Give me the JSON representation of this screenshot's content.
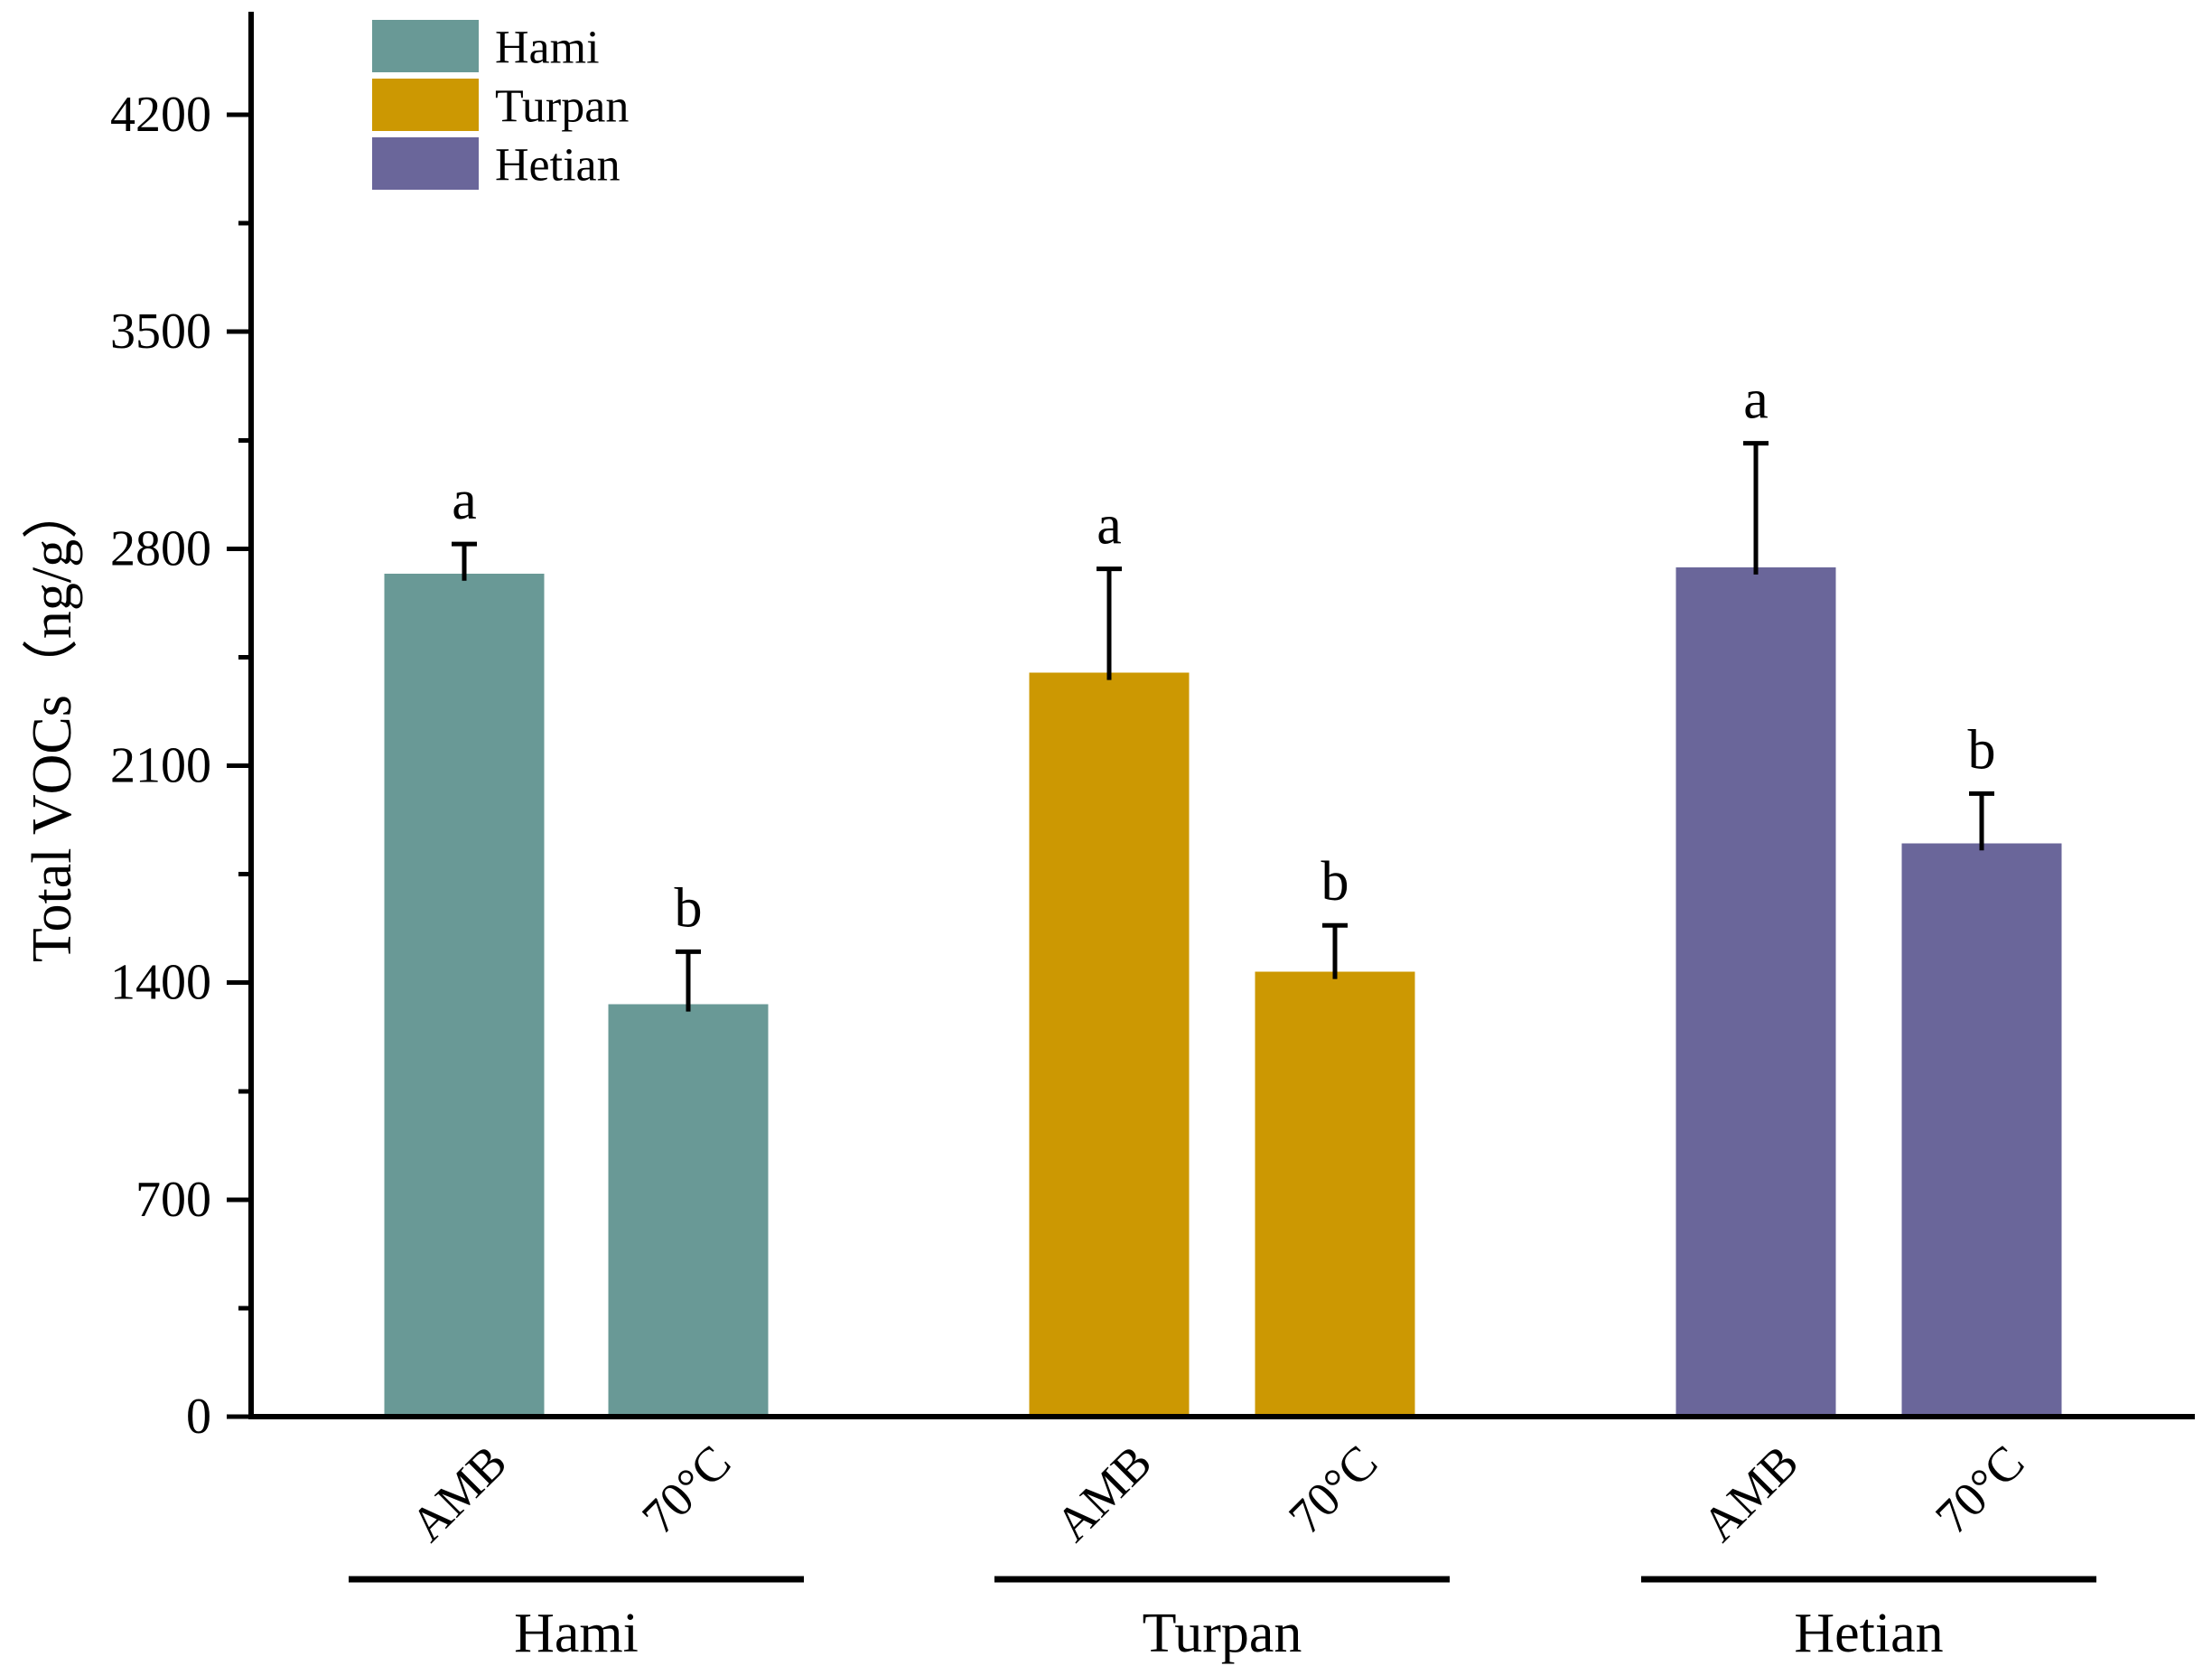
{
  "chart_data": {
    "type": "bar",
    "title": "",
    "ylabel": "Total VOCs（ng/g）",
    "xlabel": "",
    "unit": "ng/g",
    "ylim": [
      0,
      4530
    ],
    "yticks": [
      0,
      700,
      1400,
      2100,
      2800,
      3500,
      4200
    ],
    "minor_yticks": [
      350,
      1050,
      1750,
      2450,
      3150,
      3850
    ],
    "grid": false,
    "legend_position": "top-left-inside",
    "background": "#FFFFFF",
    "axis_color": "#000000",
    "legend": [
      {
        "label": "Hami",
        "color": "#699996"
      },
      {
        "label": "Turpan",
        "color": "#CC9802"
      },
      {
        "label": "Hetian",
        "color": "#6A669A"
      }
    ],
    "condition_labels": [
      "AMB",
      "70°C"
    ],
    "groups": [
      {
        "name": "Hami",
        "color": "#699996",
        "bars": [
          {
            "condition": "AMB",
            "value": 2720,
            "error": 95,
            "sig_letter": "a"
          },
          {
            "condition": "70°C",
            "value": 1330,
            "error": 170,
            "sig_letter": "b"
          }
        ]
      },
      {
        "name": "Turpan",
        "color": "#CC9802",
        "bars": [
          {
            "condition": "AMB",
            "value": 2400,
            "error": 335,
            "sig_letter": "a"
          },
          {
            "condition": "70°C",
            "value": 1435,
            "error": 150,
            "sig_letter": "b"
          }
        ]
      },
      {
        "name": "Hetian",
        "color": "#6A669A",
        "bars": [
          {
            "condition": "AMB",
            "value": 2740,
            "error": 400,
            "sig_letter": "a"
          },
          {
            "condition": "70°C",
            "value": 1850,
            "error": 160,
            "sig_letter": "b"
          }
        ]
      }
    ]
  }
}
